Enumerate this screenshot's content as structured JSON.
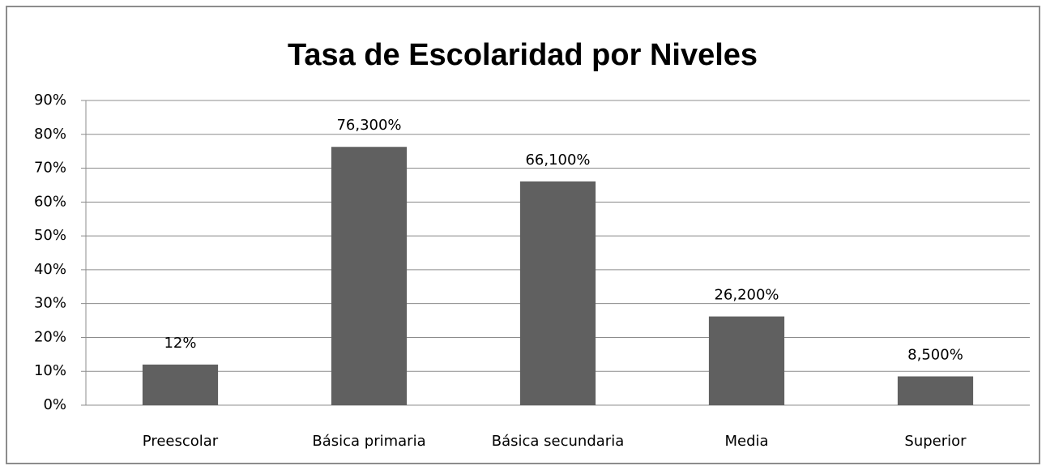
{
  "chart_data": {
    "type": "bar",
    "title": "Tasa de Escolaridad por Niveles",
    "categories": [
      "Preescolar",
      "Básica primaria",
      "Básica secundaria",
      "Media",
      "Superior"
    ],
    "values": [
      12,
      76.3,
      66.1,
      26.2,
      8.5
    ],
    "value_labels": [
      "12%",
      "76,300%",
      "66,100%",
      "26,200%",
      "8,500%"
    ],
    "color": "#606060",
    "ylim": [
      0,
      90
    ],
    "yticks": [
      {
        "value": 0,
        "label": "0%"
      },
      {
        "value": 10,
        "label": "10%"
      },
      {
        "value": 20,
        "label": "20%"
      },
      {
        "value": 30,
        "label": "30%"
      },
      {
        "value": 40,
        "label": "40%"
      },
      {
        "value": 50,
        "label": "50%"
      },
      {
        "value": 60,
        "label": "60%"
      },
      {
        "value": 70,
        "label": "70%"
      },
      {
        "value": 80,
        "label": "80%"
      },
      {
        "value": 90,
        "label": "90%"
      }
    ],
    "grid": true
  }
}
